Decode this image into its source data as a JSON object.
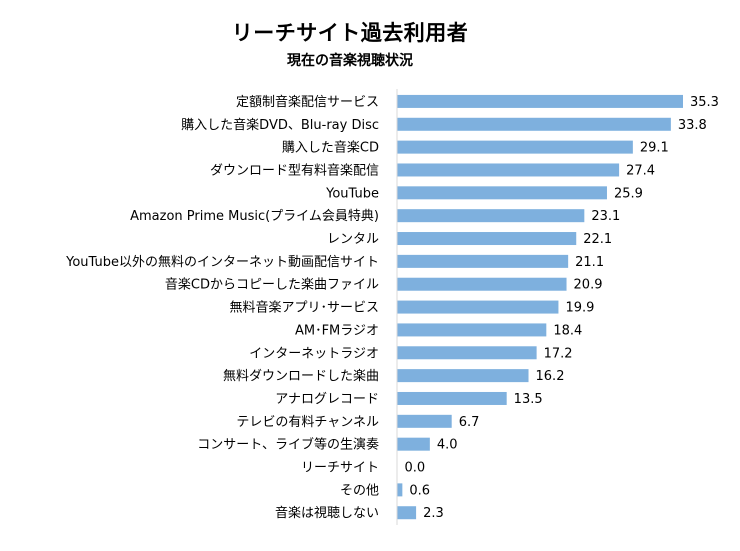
{
  "chart_data": {
    "type": "bar",
    "orientation": "horizontal",
    "title": "リーチサイト過去利用者",
    "subtitle": "現在の音楽視聴状況",
    "categories": [
      "定額制音楽配信サービス",
      "購入した音楽DVD、Blu-ray Disc",
      "購入した音楽CD",
      "ダウンロード型有料音楽配信",
      "YouTube",
      "Amazon Prime Music(プライム会員特典)",
      "レンタル",
      "YouTube以外の無料のインターネット動画配信サイト",
      "音楽CDからコピーした楽曲ファイル",
      "無料音楽アプリ･サービス",
      "AM･FMラジオ",
      "インターネットラジオ",
      "無料ダウンロードした楽曲",
      "アナログレコード",
      "テレビの有料チャンネル",
      "コンサート、ライブ等の生演奏",
      "リーチサイト",
      "その他",
      "音楽は視聴しない"
    ],
    "values": [
      35.3,
      33.8,
      29.1,
      27.4,
      25.9,
      23.1,
      22.1,
      21.1,
      20.9,
      19.9,
      18.4,
      17.2,
      16.2,
      13.5,
      6.7,
      4.0,
      0.0,
      0.6,
      2.3
    ],
    "value_labels": [
      "35.3",
      "33.8",
      "29.1",
      "27.4",
      "25.9",
      "23.1",
      "22.1",
      "21.1",
      "20.9",
      "19.9",
      "18.4",
      "17.2",
      "16.2",
      "13.5",
      "6.7",
      "4.0",
      "0.0",
      "0.6",
      "2.3"
    ],
    "bar_color": "#7eb0de",
    "axis_color": "#d9d9d9",
    "xlim": [
      0,
      40
    ],
    "grid": false,
    "legend": "none"
  }
}
